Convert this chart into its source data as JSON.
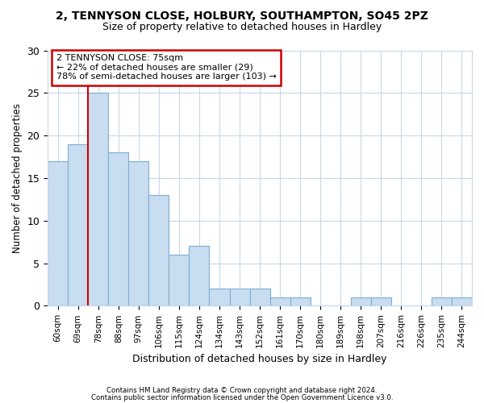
{
  "title1": "2, TENNYSON CLOSE, HOLBURY, SOUTHAMPTON, SO45 2PZ",
  "title2": "Size of property relative to detached houses in Hardley",
  "xlabel": "Distribution of detached houses by size in Hardley",
  "ylabel": "Number of detached properties",
  "categories": [
    "60sqm",
    "69sqm",
    "78sqm",
    "88sqm",
    "97sqm",
    "106sqm",
    "115sqm",
    "124sqm",
    "134sqm",
    "143sqm",
    "152sqm",
    "161sqm",
    "170sqm",
    "180sqm",
    "189sqm",
    "198sqm",
    "207sqm",
    "216sqm",
    "226sqm",
    "235sqm",
    "244sqm"
  ],
  "values": [
    17,
    19,
    25,
    18,
    17,
    13,
    6,
    7,
    2,
    2,
    2,
    1,
    1,
    0,
    0,
    1,
    1,
    0,
    0,
    1,
    1
  ],
  "bar_color": "#c9ddf0",
  "bar_edge_color": "#7aaed6",
  "annotation_text": "2 TENNYSON CLOSE: 75sqm\n← 22% of detached houses are smaller (29)\n78% of semi-detached houses are larger (103) →",
  "annotation_box_color": "#ffffff",
  "annotation_box_edge": "#cc0000",
  "vline_color": "#cc0000",
  "vline_x_index": 1.5,
  "ylim": [
    0,
    30
  ],
  "yticks": [
    0,
    5,
    10,
    15,
    20,
    25,
    30
  ],
  "grid_color": "#c8d8ea",
  "footer1": "Contains HM Land Registry data © Crown copyright and database right 2024.",
  "footer2": "Contains public sector information licensed under the Open Government Licence v3.0.",
  "bg_color": "#ffffff",
  "plot_bg_color": "#ffffff"
}
